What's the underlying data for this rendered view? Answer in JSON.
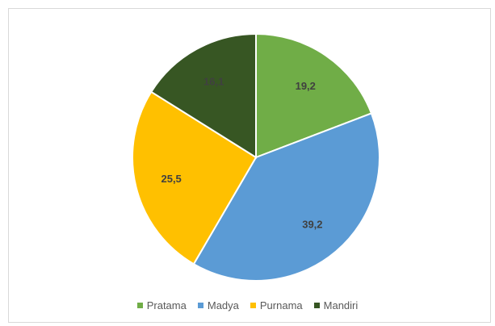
{
  "chart_data": {
    "type": "pie",
    "title": "",
    "categories": [
      "Pratama",
      "Madya",
      "Purnama",
      "Mandiri"
    ],
    "values": [
      19.2,
      39.2,
      25.5,
      16.1
    ],
    "labels": [
      "19,2",
      "39,2",
      "25,5",
      "16,1"
    ],
    "colors": [
      "#70ad47",
      "#5b9bd5",
      "#ffc000",
      "#375623"
    ],
    "legend_position": "bottom",
    "start_angle": "top, clockwise"
  }
}
